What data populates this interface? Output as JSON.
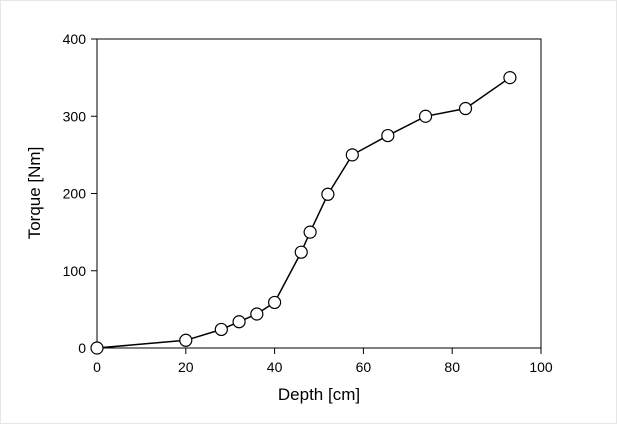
{
  "chart_data": {
    "type": "line",
    "title": "",
    "xlabel": "Depth [cm]",
    "ylabel": "Torque [Nm]",
    "xlim": [
      0,
      100
    ],
    "ylim": [
      0,
      400
    ],
    "xticks": [
      0,
      20,
      40,
      60,
      80,
      100
    ],
    "yticks": [
      0,
      100,
      200,
      300,
      400
    ],
    "grid": false,
    "legend": "none",
    "series": [
      {
        "line_color": "#000000",
        "marker": "open-circle",
        "points": [
          {
            "x": 0,
            "y": 0
          },
          {
            "x": 20,
            "y": 10
          },
          {
            "x": 28,
            "y": 24
          },
          {
            "x": 32,
            "y": 34
          },
          {
            "x": 36,
            "y": 44
          },
          {
            "x": 40,
            "y": 59
          },
          {
            "x": 46,
            "y": 124
          },
          {
            "x": 48,
            "y": 150
          },
          {
            "x": 52,
            "y": 199
          },
          {
            "x": 57.5,
            "y": 250
          },
          {
            "x": 65.5,
            "y": 275
          },
          {
            "x": 74,
            "y": 300
          },
          {
            "x": 83,
            "y": 310
          },
          {
            "x": 93,
            "y": 350
          }
        ]
      }
    ]
  }
}
